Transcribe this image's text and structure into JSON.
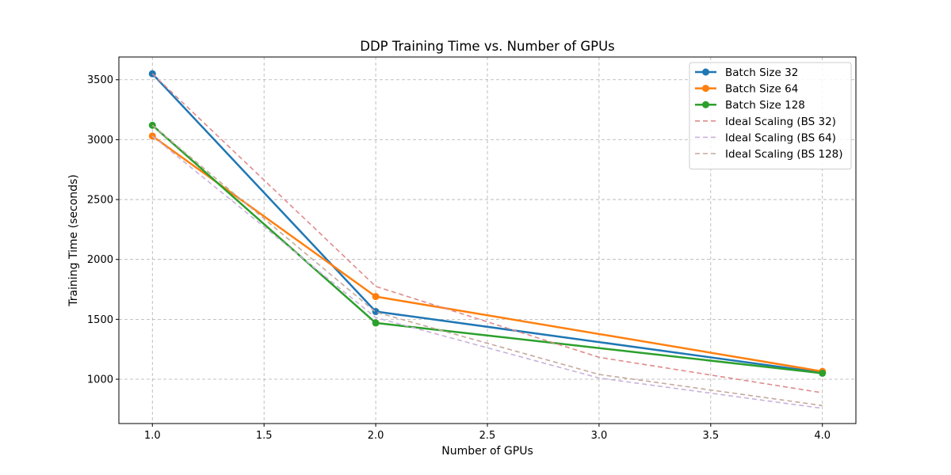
{
  "chart_data": {
    "type": "line",
    "title": "DDP Training Time vs. Number of GPUs",
    "xlabel": "Number of GPUs",
    "ylabel": "Training Time (seconds)",
    "xlim": [
      0.85,
      4.15
    ],
    "ylim": [
      630,
      3690
    ],
    "xticks": [
      1.0,
      1.5,
      2.0,
      2.5,
      3.0,
      3.5,
      4.0
    ],
    "xtick_labels": [
      "1.0",
      "1.5",
      "2.0",
      "2.5",
      "3.0",
      "3.5",
      "4.0"
    ],
    "yticks": [
      1000,
      1500,
      2000,
      2500,
      3000,
      3500
    ],
    "ytick_labels": [
      "1000",
      "1500",
      "2000",
      "2500",
      "3000",
      "3500"
    ],
    "grid": true,
    "legend_position": "top-right",
    "x": [
      1,
      2,
      3,
      4
    ],
    "series": [
      {
        "name": "Batch Size 32",
        "x": [
          1,
          2,
          4
        ],
        "values": [
          3550,
          1565,
          1055
        ],
        "color": "#1f77b4",
        "style": "solid",
        "marker": "circle"
      },
      {
        "name": "Batch Size 64",
        "x": [
          1,
          2,
          4
        ],
        "values": [
          3030,
          1690,
          1065
        ],
        "color": "#ff7f0e",
        "style": "solid",
        "marker": "circle"
      },
      {
        "name": "Batch Size 128",
        "x": [
          1,
          2,
          4
        ],
        "values": [
          3120,
          1470,
          1050
        ],
        "color": "#2ca02c",
        "style": "solid",
        "marker": "circle"
      },
      {
        "name": "Ideal Scaling (BS 32)",
        "x": [
          1,
          2,
          3,
          4
        ],
        "values": [
          3550,
          1775,
          1183,
          887
        ],
        "color": "#e08a8a",
        "style": "dashed",
        "marker": "none"
      },
      {
        "name": "Ideal Scaling (BS 64)",
        "x": [
          1,
          2,
          3,
          4
        ],
        "values": [
          3030,
          1515,
          1010,
          757
        ],
        "color": "#c9b1da",
        "style": "dashed",
        "marker": "none"
      },
      {
        "name": "Ideal Scaling (BS 128)",
        "x": [
          1,
          2,
          3,
          4
        ],
        "values": [
          3120,
          1560,
          1040,
          780
        ],
        "color": "#c6a99e",
        "style": "dashed",
        "marker": "none"
      }
    ]
  }
}
